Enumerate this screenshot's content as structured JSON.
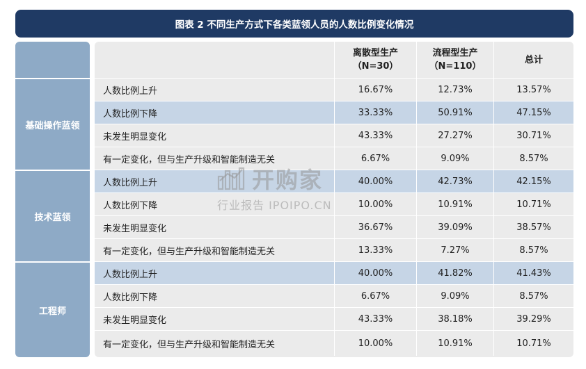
{
  "title": "图表 2 不同生产方式下各类蓝领人员的人数比例变化情况",
  "columns": [
    {
      "name": "离散型生产",
      "sub": "（N=30）"
    },
    {
      "name": "流程型生产",
      "sub": "（N=110）"
    },
    {
      "name": "总计",
      "sub": ""
    }
  ],
  "groups": [
    {
      "name": "基础操作蓝领",
      "rows": [
        {
          "label": "人数比例上升",
          "v1": "16.67%",
          "v2": "12.73%",
          "v3": "13.57%"
        },
        {
          "label": "人数比例下降",
          "v1": "33.33%",
          "v2": "50.91%",
          "v3": "47.15%"
        },
        {
          "label": "未发生明显变化",
          "v1": "43.33%",
          "v2": "27.27%",
          "v3": "30.71%"
        },
        {
          "label": "有一定变化，但与生产升级和智能制造无关",
          "v1": "6.67%",
          "v2": "9.09%",
          "v3": "8.57%"
        }
      ]
    },
    {
      "name": "技术蓝领",
      "rows": [
        {
          "label": "人数比例上升",
          "v1": "40.00%",
          "v2": "42.73%",
          "v3": "42.15%"
        },
        {
          "label": "人数比例下降",
          "v1": "10.00%",
          "v2": "10.91%",
          "v3": "10.71%"
        },
        {
          "label": "未发生明显变化",
          "v1": "36.67%",
          "v2": "39.09%",
          "v3": "38.57%"
        },
        {
          "label": "有一定变化，但与生产升级和智能制造无关",
          "v1": "13.33%",
          "v2": "7.27%",
          "v3": "8.57%"
        }
      ]
    },
    {
      "name": "工程师",
      "rows": [
        {
          "label": "人数比例上升",
          "v1": "40.00%",
          "v2": "41.82%",
          "v3": "41.43%"
        },
        {
          "label": "人数比例下降",
          "v1": "6.67%",
          "v2": "9.09%",
          "v3": "8.57%"
        },
        {
          "label": "未发生明显变化",
          "v1": "43.33%",
          "v2": "38.18%",
          "v3": "39.29%"
        },
        {
          "label": "有一定变化，但与生产升级和智能制造无关",
          "v1": "10.00%",
          "v2": "10.91%",
          "v3": "10.71%"
        }
      ]
    }
  ],
  "watermark": {
    "brand": "开购家",
    "sub": "行业报告 IPOIPO.CN"
  },
  "colors": {
    "title_bg": "#1f3a64",
    "group_bg": "#8eaac6",
    "highlight_row": "#c6d5e6",
    "panel_bg": "#ebebeb"
  }
}
